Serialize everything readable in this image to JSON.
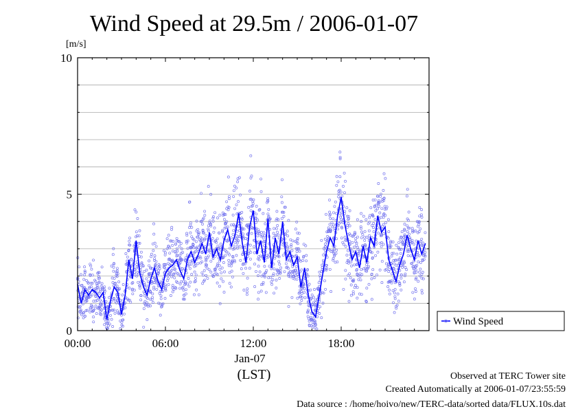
{
  "chart_data": {
    "type": "scatter",
    "title": "Wind Speed at 29.5m / 2006-01-07",
    "ylabel": "[m/s]",
    "xlabel": "(LST)",
    "date_label": "Jan-07",
    "x_unit": "hour",
    "xlim": [
      0,
      24
    ],
    "ylim": [
      0,
      10
    ],
    "yticks": [
      {
        "value": 0,
        "label": "0"
      },
      {
        "value": 5,
        "label": "5"
      },
      {
        "value": 10,
        "label": "10"
      }
    ],
    "xticks": [
      {
        "value": 0,
        "label": "00:00"
      },
      {
        "value": 6,
        "label": "06:00"
      },
      {
        "value": 12,
        "label": "12:00"
      },
      {
        "value": 18,
        "label": "18:00"
      }
    ],
    "grid": true,
    "legend_position": "right",
    "series": [
      {
        "name": "Wind Speed",
        "color": "#0000ff",
        "points_color": "#7777ee",
        "x": [
          0.0,
          0.25,
          0.5,
          0.75,
          1.0,
          1.25,
          1.5,
          1.75,
          2.0,
          2.25,
          2.5,
          2.75,
          3.0,
          3.25,
          3.5,
          3.75,
          4.0,
          4.25,
          4.5,
          4.75,
          5.0,
          5.25,
          5.5,
          5.75,
          6.0,
          6.25,
          6.5,
          6.75,
          7.0,
          7.25,
          7.5,
          7.75,
          8.0,
          8.25,
          8.5,
          8.75,
          9.0,
          9.25,
          9.5,
          9.75,
          10.0,
          10.25,
          10.5,
          10.75,
          11.0,
          11.25,
          11.5,
          11.75,
          12.0,
          12.25,
          12.5,
          12.75,
          13.0,
          13.25,
          13.5,
          13.75,
          14.0,
          14.25,
          14.5,
          14.75,
          15.0,
          15.25,
          15.5,
          15.75,
          16.0,
          16.25,
          16.5,
          16.75,
          17.0,
          17.25,
          17.5,
          17.75,
          18.0,
          18.25,
          18.5,
          18.75,
          19.0,
          19.25,
          19.5,
          19.75,
          20.0,
          20.25,
          20.5,
          20.75,
          21.0,
          21.25,
          21.5,
          21.75,
          22.0,
          22.25,
          22.5,
          22.75,
          23.0,
          23.25,
          23.5,
          23.75
        ],
        "y": [
          1.7,
          1.0,
          1.5,
          1.3,
          1.5,
          1.4,
          1.2,
          1.4,
          0.4,
          1.1,
          1.6,
          1.4,
          0.6,
          1.3,
          2.6,
          1.9,
          3.3,
          2.1,
          1.6,
          1.3,
          1.9,
          2.3,
          1.8,
          1.5,
          2.1,
          2.3,
          2.4,
          2.6,
          2.2,
          1.9,
          2.6,
          2.9,
          2.5,
          2.8,
          3.2,
          2.8,
          3.6,
          2.7,
          3.0,
          2.6,
          3.3,
          3.7,
          3.1,
          3.5,
          4.3,
          3.2,
          2.5,
          3.8,
          4.4,
          2.8,
          3.3,
          2.5,
          4.1,
          2.3,
          3.4,
          2.8,
          4.0,
          2.6,
          2.9,
          2.4,
          2.7,
          1.6,
          2.3,
          1.3,
          0.7,
          0.5,
          1.3,
          2.1,
          2.9,
          3.4,
          3.1,
          4.2,
          4.9,
          3.9,
          3.2,
          2.6,
          2.9,
          2.3,
          3.1,
          2.5,
          3.4,
          3.1,
          4.2,
          3.6,
          3.8,
          2.6,
          2.2,
          1.8,
          2.4,
          2.8,
          3.5,
          3.0,
          2.6,
          3.3,
          2.8,
          3.2
        ],
        "scatter_noise": 1.1,
        "samples_per_step": 22
      }
    ]
  },
  "footer": {
    "site": "Observed at TERC Tower site",
    "created": "Created Automatically at 2006-01-07/23:55:59",
    "source": "Data source : /home/hoivo/new/TERC-data/sorted  data/FLUX.10s.dat"
  }
}
